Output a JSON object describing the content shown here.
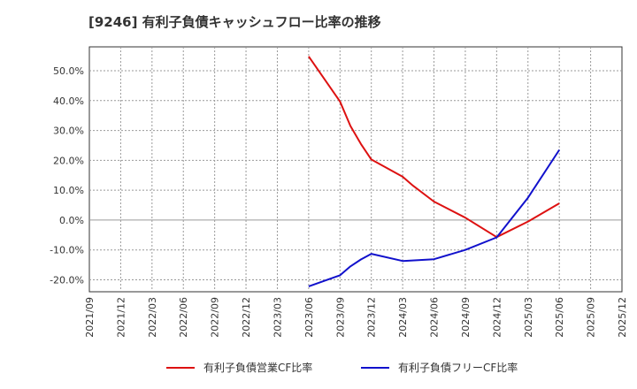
{
  "chart_data": {
    "type": "line",
    "title": "[9246]  有利子負債キャッシュフロー比率の推移",
    "xlabel": "",
    "ylabel": "",
    "ylim": [
      -24,
      58
    ],
    "yticks": [
      50,
      40,
      30,
      20,
      10,
      0,
      -10,
      -20
    ],
    "ytick_labels": [
      "50.0%",
      "40.0%",
      "30.0%",
      "20.0%",
      "10.0%",
      "0.0%",
      "-10.0%",
      "-20.0%"
    ],
    "x_range": [
      "2021/09",
      "2025/12"
    ],
    "xtick_labels": [
      "2021/09",
      "2021/12",
      "2022/03",
      "2022/06",
      "2022/09",
      "2022/12",
      "2023/03",
      "2023/06",
      "2023/09",
      "2023/12",
      "2024/03",
      "2024/06",
      "2024/09",
      "2024/12",
      "2025/03",
      "2025/06",
      "2025/09",
      "2025/12"
    ],
    "grid": true,
    "legend_position": "bottom",
    "series": [
      {
        "name": "有利子負債営業CF比率",
        "color": "#dd1111",
        "points": [
          {
            "x": "2023/06",
            "y": 54.8
          },
          {
            "x": "2023/09",
            "y": 39.7
          },
          {
            "x": "2023/10",
            "y": 31.5
          },
          {
            "x": "2023/11",
            "y": 25.5
          },
          {
            "x": "2023/12",
            "y": 20.3
          },
          {
            "x": "2024/03",
            "y": 14.5
          },
          {
            "x": "2024/04",
            "y": 11.5
          },
          {
            "x": "2024/06",
            "y": 6.2
          },
          {
            "x": "2024/09",
            "y": 0.8
          },
          {
            "x": "2024/12",
            "y": -5.7
          },
          {
            "x": "2025/03",
            "y": -0.5
          },
          {
            "x": "2025/06",
            "y": 5.6
          }
        ]
      },
      {
        "name": "有利子負債フリーCF比率",
        "color": "#1111cc",
        "points": [
          {
            "x": "2023/06",
            "y": -22.2
          },
          {
            "x": "2023/09",
            "y": -18.5
          },
          {
            "x": "2023/10",
            "y": -15.5
          },
          {
            "x": "2023/11",
            "y": -13.2
          },
          {
            "x": "2023/12",
            "y": -11.3
          },
          {
            "x": "2024/03",
            "y": -13.7
          },
          {
            "x": "2024/06",
            "y": -13.1
          },
          {
            "x": "2024/09",
            "y": -10.0
          },
          {
            "x": "2024/12",
            "y": -5.8
          },
          {
            "x": "2025/03",
            "y": 7.5
          },
          {
            "x": "2025/06",
            "y": 23.5
          }
        ]
      }
    ]
  }
}
